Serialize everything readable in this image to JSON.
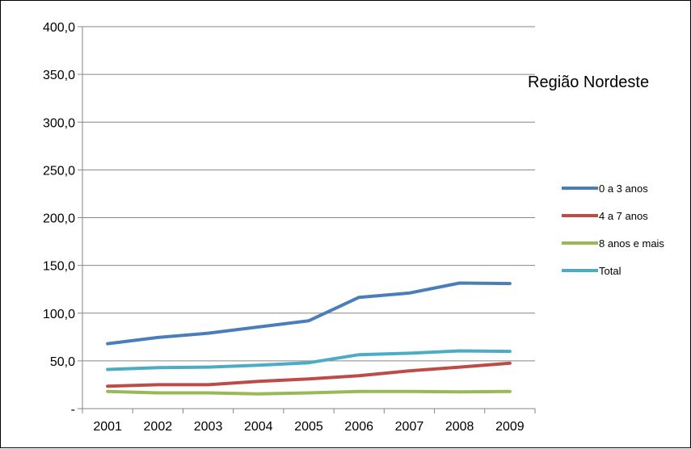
{
  "chart_data": {
    "type": "line",
    "title": "Região Nordeste",
    "xlabel": "",
    "ylabel": "",
    "categories": [
      "2001",
      "2002",
      "2003",
      "2004",
      "2005",
      "2006",
      "2007",
      "2008",
      "2009"
    ],
    "ylim": [
      0,
      400
    ],
    "yticks": [
      0,
      50,
      100,
      150,
      200,
      250,
      300,
      350,
      400
    ],
    "ytick_labels": [
      "-",
      "50,0",
      "100,0",
      "150,0",
      "200,0",
      "250,0",
      "300,0",
      "350,0",
      "400,0"
    ],
    "grid": true,
    "legend_position": "right",
    "series": [
      {
        "name": "0 a 3 anos",
        "color": "#4a7ebb",
        "values": [
          68,
          74.5,
          79,
          85.5,
          92,
          116.5,
          121,
          131.5,
          131
        ]
      },
      {
        "name": "4 a 7 anos",
        "color": "#be4b48",
        "values": [
          23.5,
          25,
          25,
          28.5,
          31,
          34.5,
          39.5,
          43.5,
          47.5
        ]
      },
      {
        "name": "8 anos e mais",
        "color": "#98b954",
        "values": [
          18,
          16.5,
          16.5,
          15.5,
          16.5,
          18,
          18,
          17.5,
          18
        ]
      },
      {
        "name": "Total",
        "color": "#4bacc6",
        "values": [
          41,
          43,
          43.5,
          45.5,
          48,
          56.5,
          58,
          60.5,
          60
        ]
      }
    ]
  }
}
